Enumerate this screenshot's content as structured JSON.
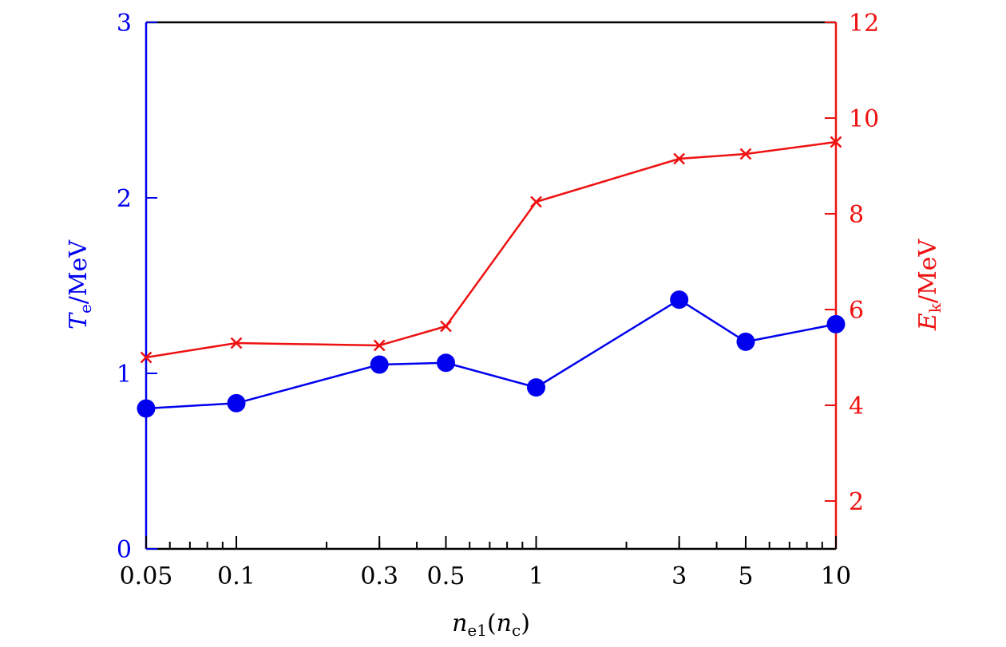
{
  "chart_data": {
    "type": "line",
    "x_scale": "log",
    "xlim": [
      0.05,
      10
    ],
    "x": [
      0.05,
      0.1,
      0.3,
      0.5,
      1,
      3,
      5,
      10
    ],
    "x_tick_labels": [
      "0.05",
      "0.1",
      "0.3",
      "0.5",
      "1",
      "3",
      "5",
      "10"
    ],
    "xlabel": {
      "main": "n",
      "sub": "e1",
      "paren_open": "(",
      "paren_main": "n",
      "paren_sub": "c",
      "paren_close": ")"
    },
    "y_left": {
      "ylim": [
        0,
        3
      ],
      "ticks": [
        "0",
        "1",
        "2",
        "3"
      ],
      "label": {
        "main": "T",
        "sub": "e",
        "unit": "/MeV"
      },
      "color": "#0000ee"
    },
    "y_right": {
      "ylim": [
        1,
        12
      ],
      "ticks": [
        "2",
        "4",
        "6",
        "8",
        "10",
        "12"
      ],
      "label": {
        "main": "E",
        "sub": "k",
        "unit": "/MeV"
      },
      "color": "#ee1111"
    },
    "series": [
      {
        "axis": "left",
        "marker": "circle",
        "color": "#0000ee",
        "values": [
          0.8,
          0.83,
          1.05,
          1.06,
          0.92,
          1.42,
          1.18,
          1.28
        ]
      },
      {
        "axis": "right",
        "marker": "x",
        "color": "#ee1111",
        "values": [
          5.0,
          5.3,
          5.25,
          5.65,
          8.25,
          9.15,
          9.25,
          9.5
        ]
      }
    ],
    "grid": false,
    "legend": "none"
  }
}
